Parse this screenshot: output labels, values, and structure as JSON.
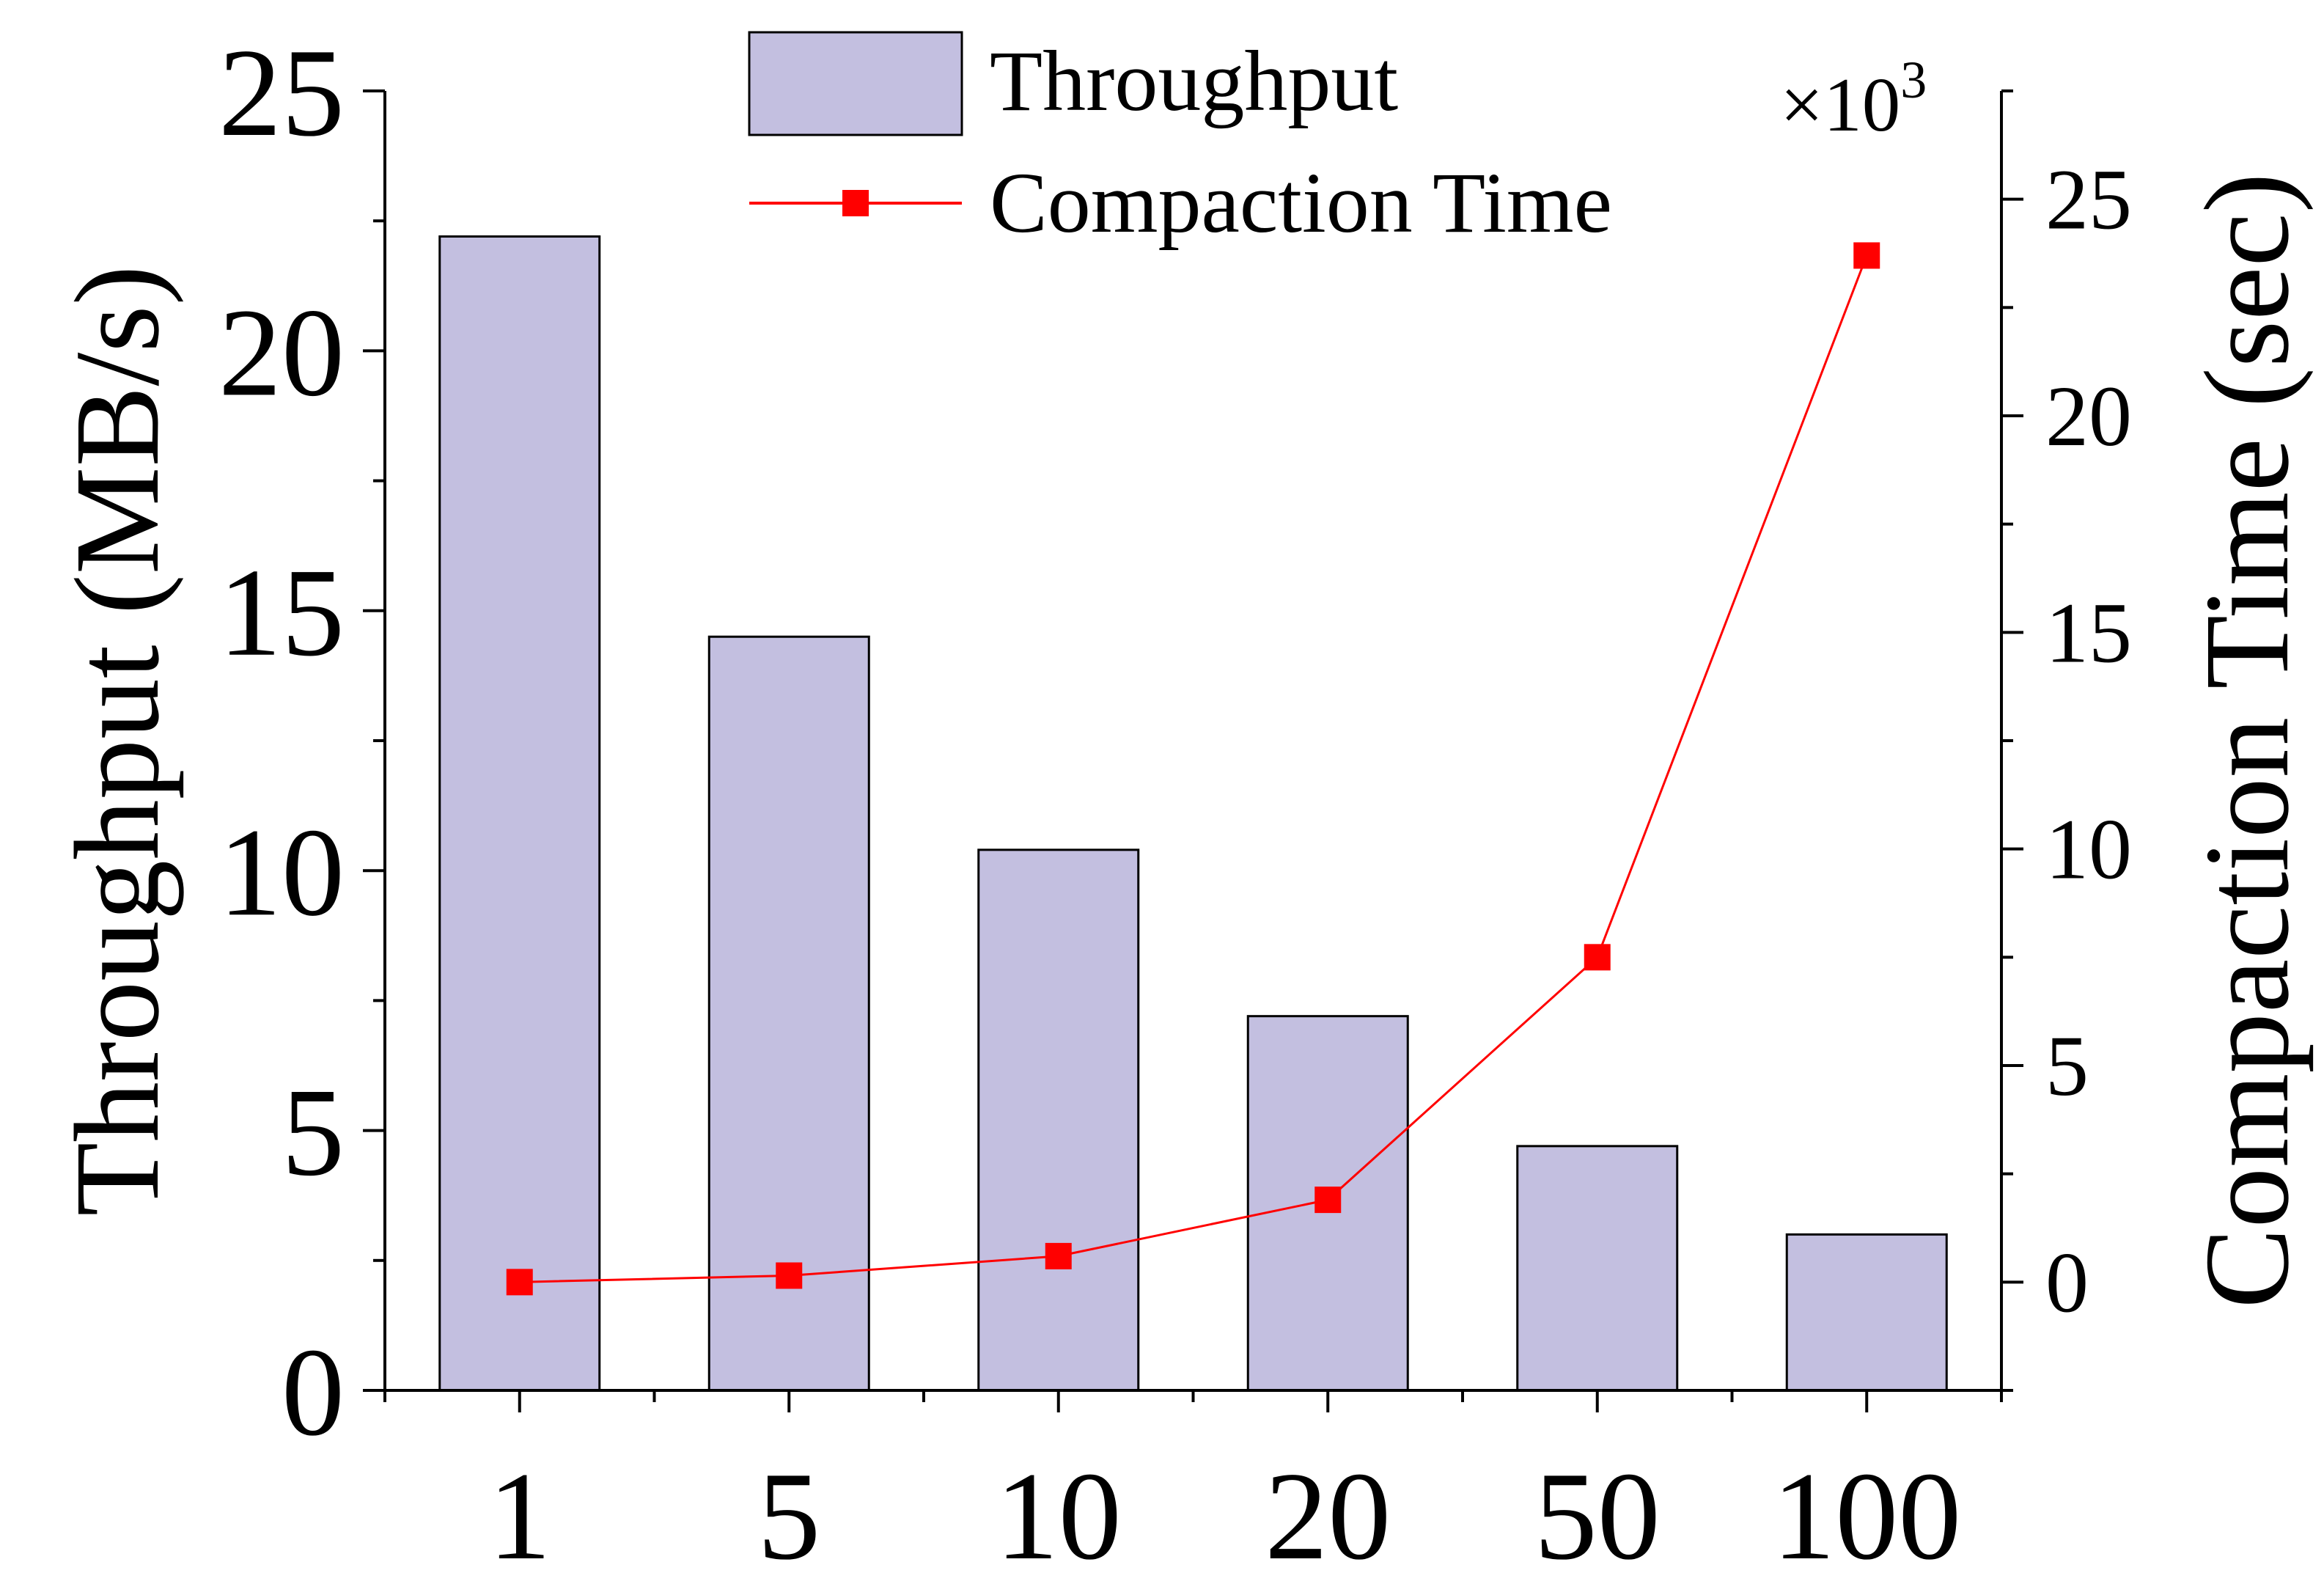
{
  "chart_data": {
    "type": "bar",
    "categories": [
      "1",
      "5",
      "10",
      "20",
      "50",
      "100"
    ],
    "series": [
      {
        "name": "Throughput",
        "kind": "bar",
        "axis": "left",
        "color": "#c3bfe0",
        "values": [
          22.2,
          14.5,
          10.4,
          7.2,
          4.7,
          3.0
        ]
      },
      {
        "name": "Compaction Time",
        "kind": "line",
        "axis": "right",
        "color": "#ff0000",
        "marker": "square",
        "values": [
          0,
          0.15,
          0.6,
          1.9,
          7.5,
          23.7
        ]
      }
    ],
    "left_axis": {
      "label": "Throughput (MB/s)",
      "ylim": [
        0,
        25
      ],
      "ticks": [
        "0",
        "5",
        "10",
        "15",
        "20",
        "25"
      ]
    },
    "right_axis": {
      "label": "Compaction Time (sec)",
      "multiplier": "×10",
      "multiplier_exp": "3",
      "ylim": [
        -2.5,
        27.5
      ],
      "ticks": [
        "0",
        "5",
        "10",
        "15",
        "20",
        "25"
      ]
    },
    "xlabel": "",
    "grid": false,
    "legend_position": "top-center"
  }
}
